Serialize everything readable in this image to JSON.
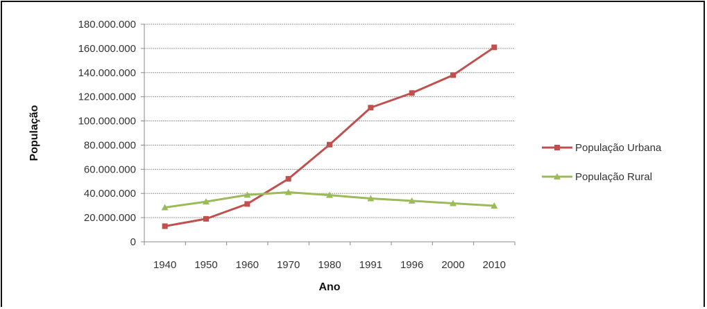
{
  "chart_data": {
    "type": "line",
    "xlabel": "Ano",
    "ylabel": "População",
    "categories": [
      "1940",
      "1950",
      "1960",
      "1970",
      "1980",
      "1991",
      "1996",
      "2000",
      "2010"
    ],
    "ylim": [
      0,
      180000000
    ],
    "ytick_values": [
      0,
      20000000,
      40000000,
      60000000,
      80000000,
      100000000,
      120000000,
      140000000,
      160000000,
      180000000
    ],
    "ytick_labels": [
      "0",
      "20.000.000",
      "40.000.000",
      "60.000.000",
      "80.000.000",
      "100.000.000",
      "120.000.000",
      "140.000.000",
      "160.000.000",
      "180.000.000"
    ],
    "grid": true,
    "legend_position": "right",
    "series": [
      {
        "name": "População Urbana",
        "color": "#c0504d",
        "marker": "square",
        "values": [
          12900000,
          19000000,
          31300000,
          52100000,
          80400000,
          111000000,
          123100000,
          137900000,
          160900000
        ]
      },
      {
        "name": "População Rural",
        "color": "#9bbb59",
        "marker": "triangle",
        "values": [
          28400000,
          33200000,
          38800000,
          41000000,
          38600000,
          35800000,
          33900000,
          31800000,
          29800000
        ]
      }
    ]
  }
}
